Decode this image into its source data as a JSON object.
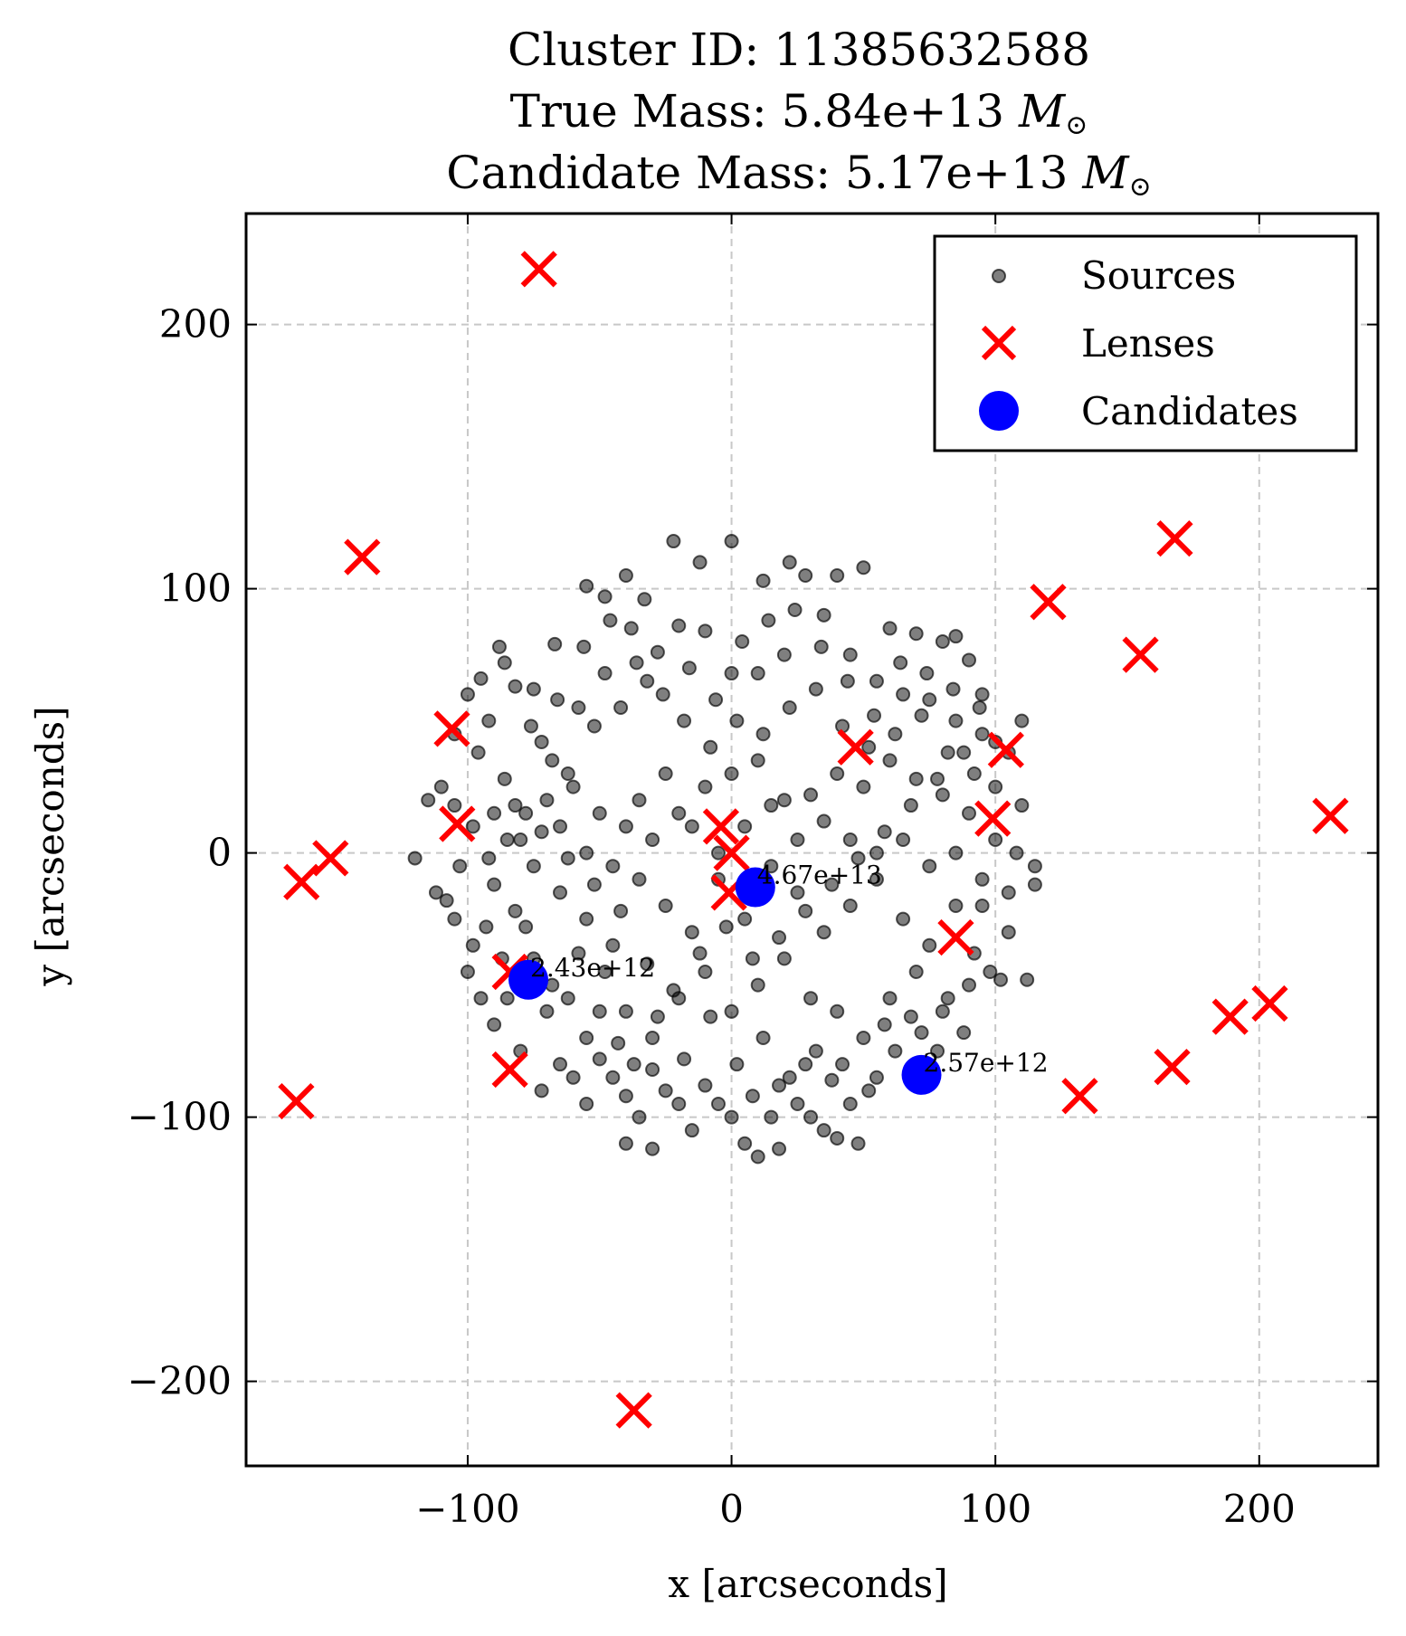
{
  "chart_data": {
    "type": "scatter",
    "title": [
      "Cluster ID: 11385632588",
      "True Mass: 5.84e+13 M⊙",
      "Candidate Mass: 5.17e+13 M⊙"
    ],
    "xlabel": "x [arcseconds]",
    "ylabel": "y [arcseconds]",
    "xlim": [
      -184,
      245
    ],
    "ylim": [
      -232,
      242
    ],
    "xticks": [
      -100,
      0,
      100,
      200
    ],
    "yticks": [
      -200,
      -100,
      0,
      100,
      200
    ],
    "xtick_labels": [
      "−100",
      "0",
      "100",
      "200"
    ],
    "ytick_labels": [
      "−200",
      "−100",
      "0",
      "100",
      "200"
    ],
    "grid": true,
    "legend_position": "upper right",
    "colors": {
      "sources": "#000000",
      "lenses": "#ff0000",
      "candidates": "#0000ff"
    },
    "series": [
      {
        "name": "Sources",
        "marker": "circle",
        "points": [
          [
            -95,
            66
          ],
          [
            -88,
            78
          ],
          [
            -86,
            72
          ],
          [
            -75,
            62
          ],
          [
            -67,
            79
          ],
          [
            -55,
            101
          ],
          [
            -48,
            97
          ],
          [
            -40,
            105
          ],
          [
            -33,
            96
          ],
          [
            -22,
            118
          ],
          [
            -12,
            110
          ],
          [
            0,
            118
          ],
          [
            12,
            103
          ],
          [
            22,
            110
          ],
          [
            28,
            105
          ],
          [
            40,
            105
          ],
          [
            50,
            108
          ],
          [
            60,
            85
          ],
          [
            70,
            83
          ],
          [
            80,
            80
          ],
          [
            85,
            82
          ],
          [
            90,
            73
          ],
          [
            95,
            60
          ],
          [
            -100,
            60
          ],
          [
            -92,
            50
          ],
          [
            -82,
            63
          ],
          [
            -72,
            42
          ],
          [
            -62,
            30
          ],
          [
            -52,
            48
          ],
          [
            -42,
            55
          ],
          [
            -32,
            65
          ],
          [
            -20,
            86
          ],
          [
            -10,
            84
          ],
          [
            0,
            68
          ],
          [
            10,
            68
          ],
          [
            20,
            75
          ],
          [
            35,
            90
          ],
          [
            45,
            75
          ],
          [
            55,
            65
          ],
          [
            65,
            60
          ],
          [
            75,
            58
          ],
          [
            85,
            50
          ],
          [
            95,
            45
          ],
          [
            100,
            42
          ],
          [
            105,
            38
          ],
          [
            110,
            50
          ],
          [
            -115,
            20
          ],
          [
            -110,
            25
          ],
          [
            -105,
            18
          ],
          [
            -98,
            10
          ],
          [
            -90,
            15
          ],
          [
            -80,
            5
          ],
          [
            -70,
            20
          ],
          [
            -60,
            25
          ],
          [
            -50,
            15
          ],
          [
            -40,
            10
          ],
          [
            -30,
            5
          ],
          [
            -20,
            15
          ],
          [
            -10,
            25
          ],
          [
            0,
            30
          ],
          [
            10,
            35
          ],
          [
            20,
            20
          ],
          [
            30,
            22
          ],
          [
            40,
            30
          ],
          [
            50,
            25
          ],
          [
            60,
            35
          ],
          [
            70,
            28
          ],
          [
            80,
            22
          ],
          [
            90,
            15
          ],
          [
            100,
            5
          ],
          [
            108,
            0
          ],
          [
            115,
            -5
          ],
          [
            110,
            18
          ],
          [
            -120,
            -2
          ],
          [
            -112,
            -15
          ],
          [
            -105,
            -25
          ],
          [
            -98,
            -35
          ],
          [
            -90,
            -12
          ],
          [
            -82,
            -22
          ],
          [
            -75,
            -5
          ],
          [
            -65,
            -15
          ],
          [
            -55,
            -25
          ],
          [
            -45,
            -35
          ],
          [
            -35,
            -10
          ],
          [
            -25,
            -20
          ],
          [
            -15,
            -30
          ],
          [
            -5,
            -10
          ],
          [
            5,
            -25
          ],
          [
            15,
            -5
          ],
          [
            25,
            -15
          ],
          [
            35,
            -30
          ],
          [
            45,
            -20
          ],
          [
            55,
            -10
          ],
          [
            65,
            -25
          ],
          [
            75,
            -35
          ],
          [
            85,
            -20
          ],
          [
            95,
            -10
          ],
          [
            105,
            -15
          ],
          [
            115,
            -12
          ],
          [
            112,
            -48
          ],
          [
            -100,
            -45
          ],
          [
            -95,
            -55
          ],
          [
            -90,
            -65
          ],
          [
            -85,
            -55
          ],
          [
            -75,
            -40
          ],
          [
            -70,
            -60
          ],
          [
            -62,
            -55
          ],
          [
            -55,
            -70
          ],
          [
            -48,
            -45
          ],
          [
            -40,
            -60
          ],
          [
            -30,
            -70
          ],
          [
            -20,
            -55
          ],
          [
            -10,
            -45
          ],
          [
            0,
            -60
          ],
          [
            10,
            -50
          ],
          [
            20,
            -40
          ],
          [
            30,
            -55
          ],
          [
            40,
            -60
          ],
          [
            50,
            -70
          ],
          [
            60,
            -55
          ],
          [
            70,
            -45
          ],
          [
            80,
            -60
          ],
          [
            90,
            -50
          ],
          [
            98,
            -45
          ],
          [
            102,
            -48
          ],
          [
            -80,
            -75
          ],
          [
            -72,
            -90
          ],
          [
            -65,
            -80
          ],
          [
            -55,
            -95
          ],
          [
            -45,
            -85
          ],
          [
            -35,
            -100
          ],
          [
            -25,
            -90
          ],
          [
            -15,
            -105
          ],
          [
            -5,
            -95
          ],
          [
            5,
            -110
          ],
          [
            15,
            -100
          ],
          [
            25,
            -95
          ],
          [
            35,
            -105
          ],
          [
            45,
            -95
          ],
          [
            55,
            -85
          ],
          [
            -40,
            -110
          ],
          [
            -30,
            -112
          ],
          [
            10,
            -115
          ],
          [
            18,
            -112
          ],
          [
            30,
            -100
          ],
          [
            40,
            -108
          ],
          [
            48,
            -110
          ],
          [
            -108,
            -18
          ],
          [
            -103,
            -5
          ],
          [
            -93,
            -28
          ],
          [
            -87,
            -40
          ],
          [
            -78,
            -28
          ],
          [
            -68,
            -50
          ],
          [
            -58,
            -38
          ],
          [
            -50,
            -60
          ],
          [
            -43,
            -72
          ],
          [
            -37,
            -80
          ],
          [
            -28,
            -62
          ],
          [
            -18,
            -78
          ],
          [
            -8,
            -62
          ],
          [
            2,
            -80
          ],
          [
            12,
            -70
          ],
          [
            22,
            -85
          ],
          [
            32,
            -75
          ],
          [
            42,
            -80
          ],
          [
            52,
            -90
          ],
          [
            62,
            -75
          ],
          [
            72,
            -68
          ],
          [
            82,
            -55
          ],
          [
            92,
            -38
          ],
          [
            -85,
            5
          ],
          [
            -78,
            15
          ],
          [
            -68,
            35
          ],
          [
            -58,
            55
          ],
          [
            -48,
            68
          ],
          [
            -38,
            85
          ],
          [
            -28,
            76
          ],
          [
            -18,
            50
          ],
          [
            -8,
            40
          ],
          [
            2,
            50
          ],
          [
            12,
            45
          ],
          [
            22,
            55
          ],
          [
            32,
            62
          ],
          [
            42,
            48
          ],
          [
            52,
            40
          ],
          [
            62,
            45
          ],
          [
            72,
            52
          ],
          [
            82,
            38
          ],
          [
            92,
            30
          ],
          [
            100,
            25
          ],
          [
            -65,
            10
          ],
          [
            -55,
            0
          ],
          [
            -45,
            -5
          ],
          [
            -35,
            20
          ],
          [
            -25,
            30
          ],
          [
            -15,
            10
          ],
          [
            -5,
            0
          ],
          [
            5,
            10
          ],
          [
            15,
            18
          ],
          [
            25,
            5
          ],
          [
            35,
            12
          ],
          [
            45,
            5
          ],
          [
            55,
            0
          ],
          [
            65,
            5
          ],
          [
            75,
            -5
          ],
          [
            85,
            0
          ],
          [
            95,
            -20
          ],
          [
            105,
            -30
          ],
          [
            -105,
            45
          ],
          [
            -96,
            38
          ],
          [
            -86,
            28
          ],
          [
            -76,
            48
          ],
          [
            -66,
            58
          ],
          [
            -56,
            78
          ],
          [
            -46,
            88
          ],
          [
            -36,
            72
          ],
          [
            -26,
            60
          ],
          [
            -16,
            70
          ],
          [
            -6,
            58
          ],
          [
            4,
            80
          ],
          [
            14,
            88
          ],
          [
            24,
            92
          ],
          [
            34,
            78
          ],
          [
            44,
            65
          ],
          [
            54,
            52
          ],
          [
            64,
            72
          ],
          [
            74,
            68
          ],
          [
            84,
            62
          ],
          [
            94,
            55
          ],
          [
            -60,
            -85
          ],
          [
            -50,
            -78
          ],
          [
            -40,
            -92
          ],
          [
            -30,
            -82
          ],
          [
            -20,
            -95
          ],
          [
            -10,
            -88
          ],
          [
            0,
            -100
          ],
          [
            8,
            -92
          ],
          [
            18,
            -88
          ],
          [
            28,
            -80
          ],
          [
            38,
            -86
          ],
          [
            58,
            -65
          ],
          [
            68,
            -62
          ],
          [
            78,
            -75
          ],
          [
            88,
            -68
          ],
          [
            -22,
            -52
          ],
          [
            -12,
            -38
          ],
          [
            -2,
            -28
          ],
          [
            8,
            -40
          ],
          [
            18,
            -32
          ],
          [
            28,
            -22
          ],
          [
            38,
            -12
          ],
          [
            48,
            -2
          ],
          [
            58,
            8
          ],
          [
            68,
            18
          ],
          [
            78,
            28
          ],
          [
            88,
            38
          ],
          [
            -32,
            -42
          ],
          [
            -42,
            -22
          ],
          [
            -52,
            -12
          ],
          [
            -62,
            -2
          ],
          [
            -72,
            8
          ],
          [
            -82,
            18
          ],
          [
            -92,
            -2
          ]
        ]
      },
      {
        "name": "Lenses",
        "marker": "x",
        "points": [
          [
            -73,
            221
          ],
          [
            -140,
            112
          ],
          [
            120,
            95
          ],
          [
            168,
            119
          ],
          [
            155,
            75
          ],
          [
            -106,
            47
          ],
          [
            -104,
            11
          ],
          [
            -152,
            -2
          ],
          [
            -163,
            -11
          ],
          [
            -4,
            10
          ],
          [
            0,
            0
          ],
          [
            -1,
            -15
          ],
          [
            47,
            40
          ],
          [
            104,
            39
          ],
          [
            99,
            13
          ],
          [
            227,
            14
          ],
          [
            85,
            -32
          ],
          [
            -84,
            -45
          ],
          [
            -84,
            -82
          ],
          [
            -165,
            -94
          ],
          [
            132,
            -92
          ],
          [
            167,
            -81
          ],
          [
            189,
            -62
          ],
          [
            204,
            -57
          ],
          [
            -37,
            -211
          ]
        ]
      },
      {
        "name": "Candidates",
        "marker": "circle-large",
        "points": [
          [
            9,
            -13
          ],
          [
            -77,
            -48
          ],
          [
            72,
            -84
          ]
        ],
        "labels": [
          "4.67e+13",
          "2.43e+12",
          "2.57e+12"
        ]
      }
    ]
  }
}
